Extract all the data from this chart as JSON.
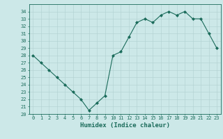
{
  "x": [
    0,
    1,
    2,
    3,
    4,
    5,
    6,
    7,
    8,
    9,
    10,
    11,
    12,
    13,
    14,
    15,
    16,
    17,
    18,
    19,
    20,
    21,
    22,
    23
  ],
  "y": [
    28,
    27,
    26,
    25,
    24,
    23,
    22,
    20.5,
    21.5,
    22.5,
    28,
    28.5,
    30.5,
    32.5,
    33,
    32.5,
    33.5,
    34,
    33.5,
    34,
    33,
    33,
    31,
    29
  ],
  "line_color": "#1a6b5a",
  "marker": "D",
  "marker_size": 2,
  "bg_color": "#cce8e8",
  "grid_color": "#b0d0d0",
  "xlabel": "Humidex (Indice chaleur)",
  "xlim": [
    -0.5,
    23.5
  ],
  "ylim": [
    20,
    35
  ],
  "yticks": [
    20,
    21,
    22,
    23,
    24,
    25,
    26,
    27,
    28,
    29,
    30,
    31,
    32,
    33,
    34
  ],
  "xticks": [
    0,
    1,
    2,
    3,
    4,
    5,
    6,
    7,
    8,
    9,
    10,
    11,
    12,
    13,
    14,
    15,
    16,
    17,
    18,
    19,
    20,
    21,
    22,
    23
  ],
  "tick_fontsize": 5,
  "label_fontsize": 6.5,
  "spine_color": "#1a6b5a",
  "line_width": 0.8
}
